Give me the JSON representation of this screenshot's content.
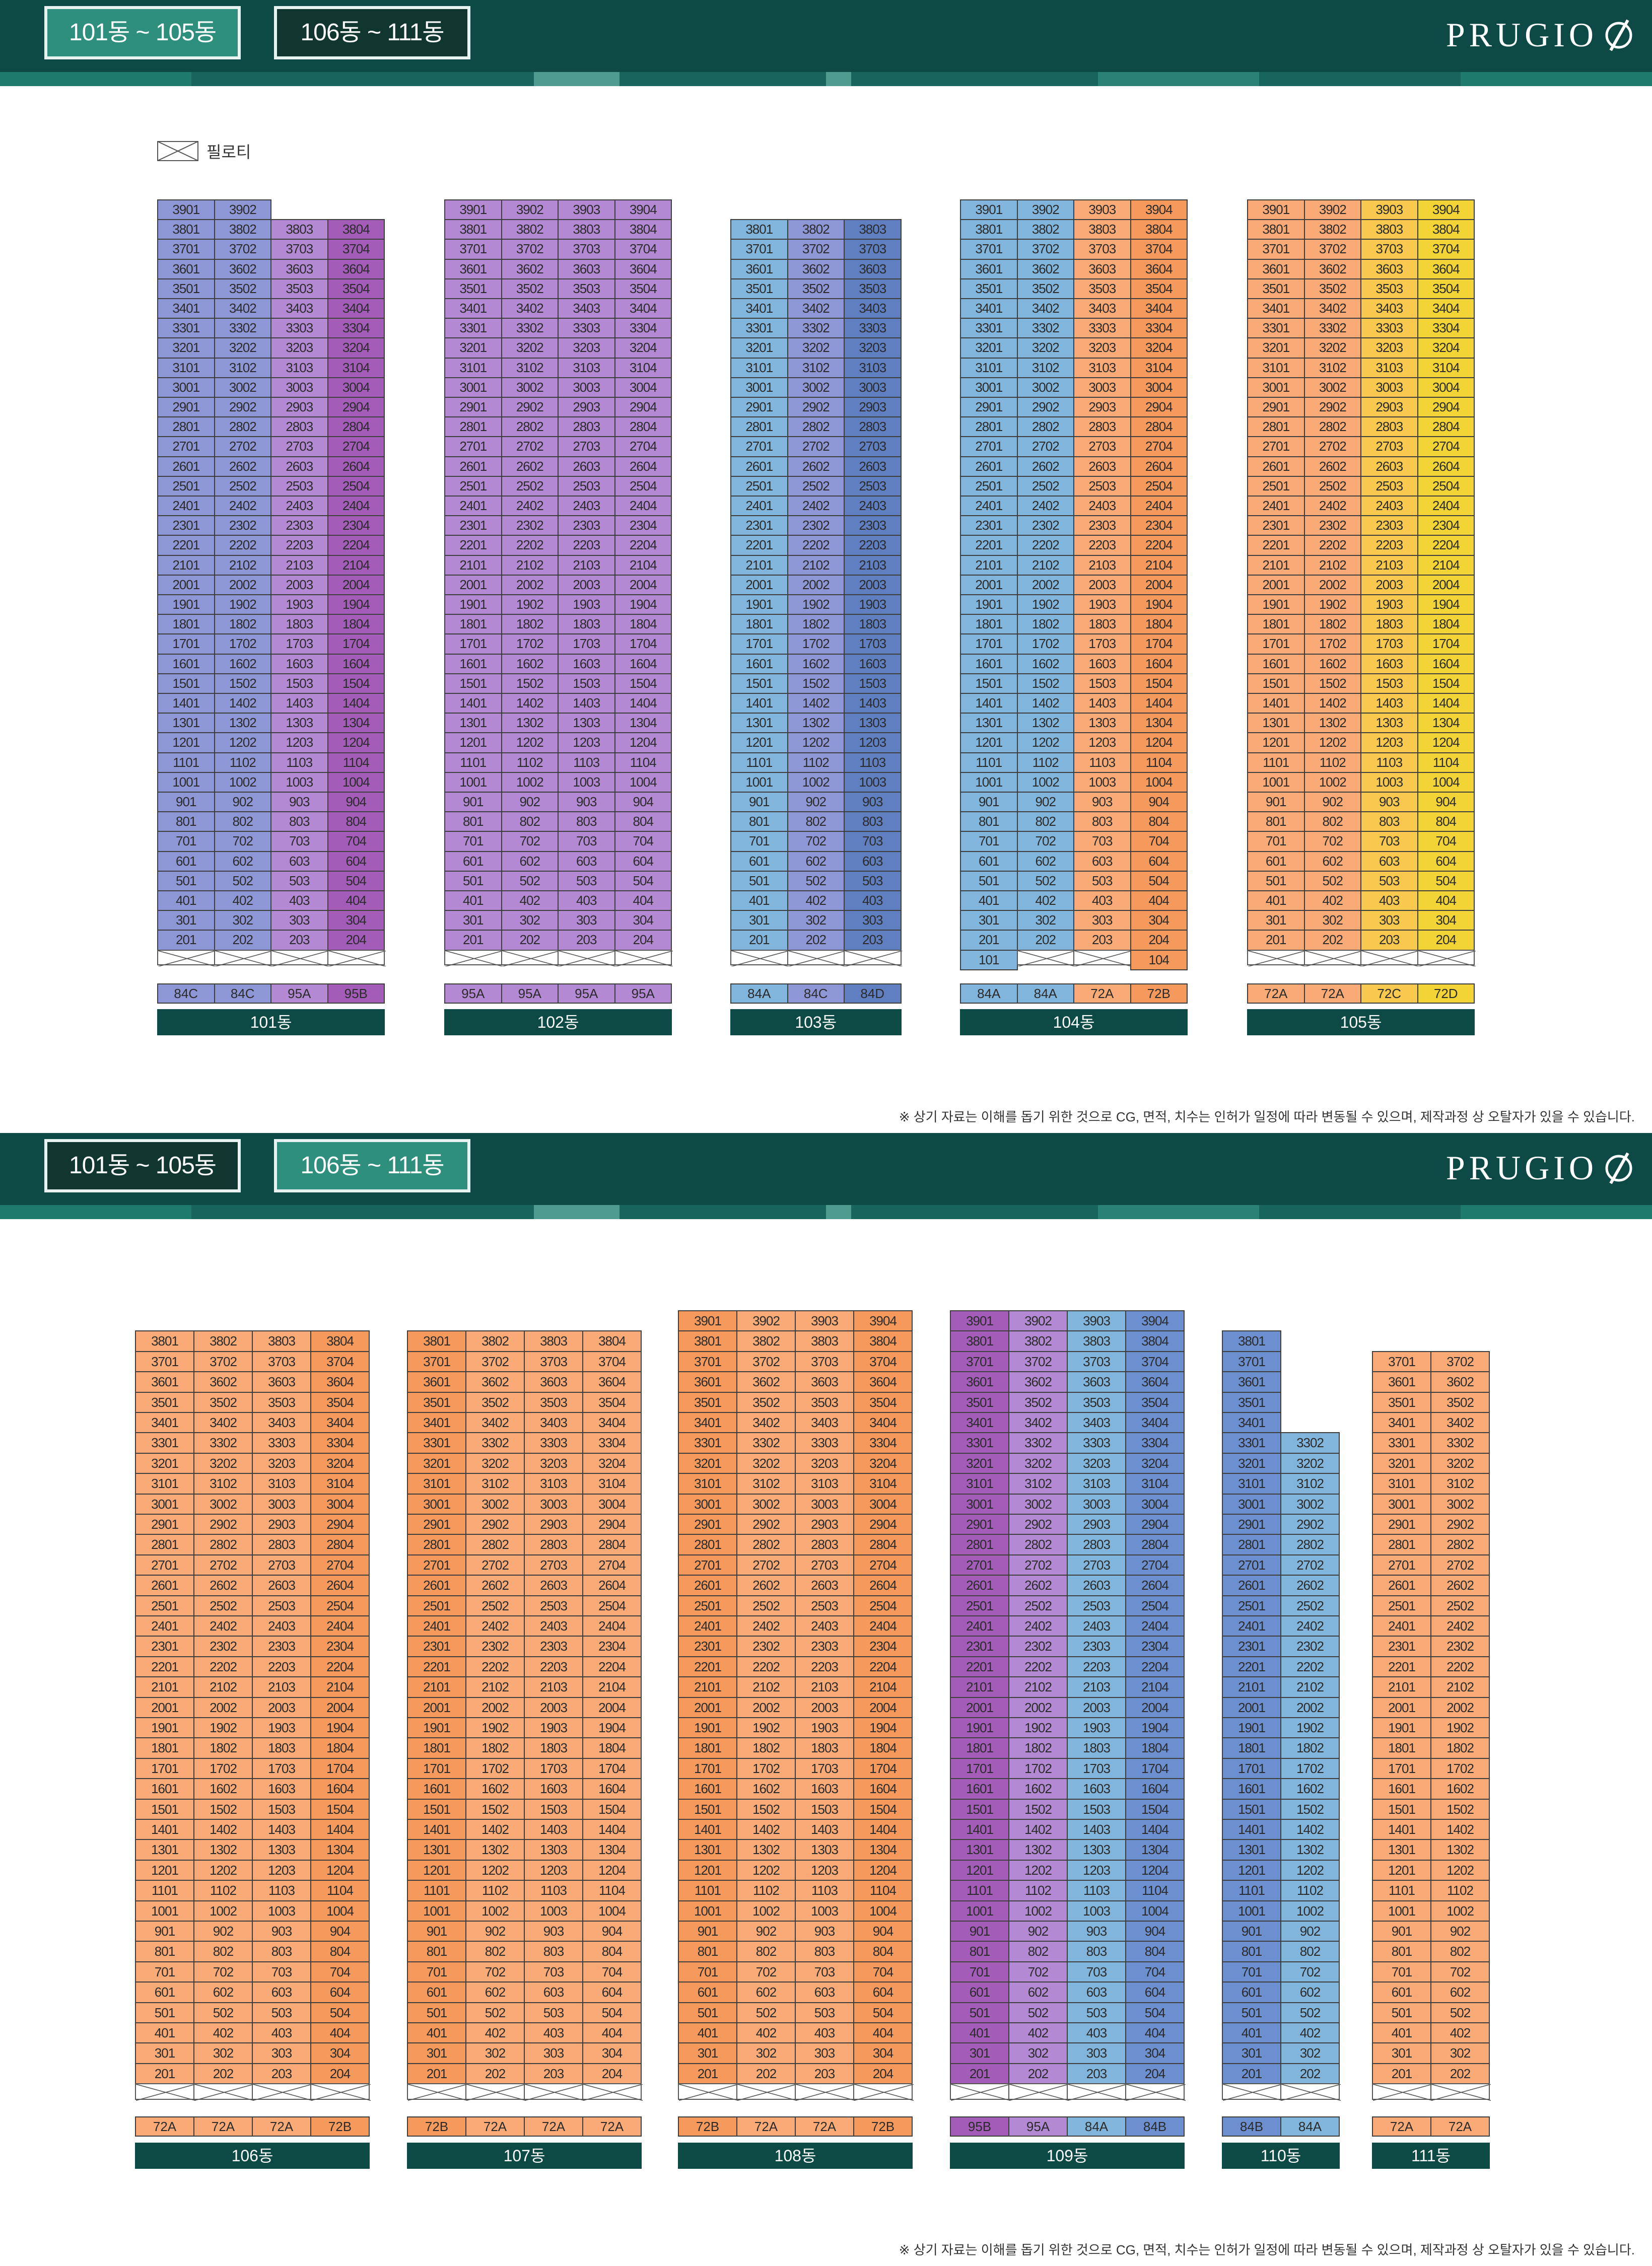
{
  "brand": {
    "logo_text": "PRUGIO"
  },
  "colors": {
    "header": "#0d4a45",
    "tab_active": "#2e8f7d",
    "tab_inactive": "#11352f",
    "label_bg": "#0d4a45",
    "types": {
      "84C": "#8e97d6",
      "95A": "#b489d3",
      "95B": "#a35db9",
      "84A": "#81b5dc",
      "84B": "#6c8fd0",
      "84D": "#5f7fc0",
      "72A": "#f9aa76",
      "72B": "#f59a5c",
      "72C": "#f9c94f",
      "72D": "#f2d437",
      "empty": "#ffffff"
    }
  },
  "legend": {
    "label": "필로티"
  },
  "note": "※ 상기 자료는 이해를 돕기 위한 것으로 CG, 면적, 치수는 인허가 일정에 따라 변동될 수 있으며, 제작과정 상 오탈자가 있을 수 있습니다.",
  "panels": [
    {
      "tabs": [
        {
          "label": "101동 ~ 105동",
          "active": true
        },
        {
          "label": "106동 ~ 111동",
          "active": false
        }
      ],
      "buildings": [
        {
          "name": "101동",
          "types": [
            "84C",
            "84C",
            "95A",
            "95B"
          ],
          "max_floor": 38,
          "special_top": [
            {
              "floor": 39,
              "cols": [
                0,
                1
              ]
            }
          ]
        },
        {
          "name": "102동",
          "types": [
            "95A",
            "95A",
            "95A",
            "95A"
          ],
          "max_floor": 39
        },
        {
          "name": "103동",
          "types": [
            "84A",
            "84C",
            "84D"
          ],
          "max_floor": 38
        },
        {
          "name": "104동",
          "types": [
            "84A",
            "84A",
            "72A",
            "72B"
          ],
          "max_floor": 39,
          "ground_units": [
            "101",
            "",
            "",
            "104"
          ]
        },
        {
          "name": "105동",
          "types": [
            "72A",
            "72A",
            "72C",
            "72D"
          ],
          "max_floor": 39
        }
      ]
    },
    {
      "tabs": [
        {
          "label": "101동 ~ 105동",
          "active": false
        },
        {
          "label": "106동 ~ 111동",
          "active": true
        }
      ],
      "buildings": [
        {
          "name": "106동",
          "types": [
            "72A",
            "72A",
            "72A",
            "72B"
          ],
          "max_floor": 38
        },
        {
          "name": "107동",
          "types": [
            "72B",
            "72A",
            "72A",
            "72A"
          ],
          "max_floor": 38
        },
        {
          "name": "108동",
          "types": [
            "72B",
            "72A",
            "72A",
            "72B"
          ],
          "max_floor": 39
        },
        {
          "name": "109동",
          "types": [
            "95B",
            "95A",
            "84A",
            "84B"
          ],
          "max_floor": 39
        },
        {
          "name": "110동",
          "types": [
            "84B",
            "84A"
          ],
          "max_floor": 38,
          "col_max": [
            38,
            33
          ]
        },
        {
          "name": "111동",
          "types": [
            "72A",
            "72A"
          ],
          "max_floor": 37
        }
      ]
    }
  ]
}
